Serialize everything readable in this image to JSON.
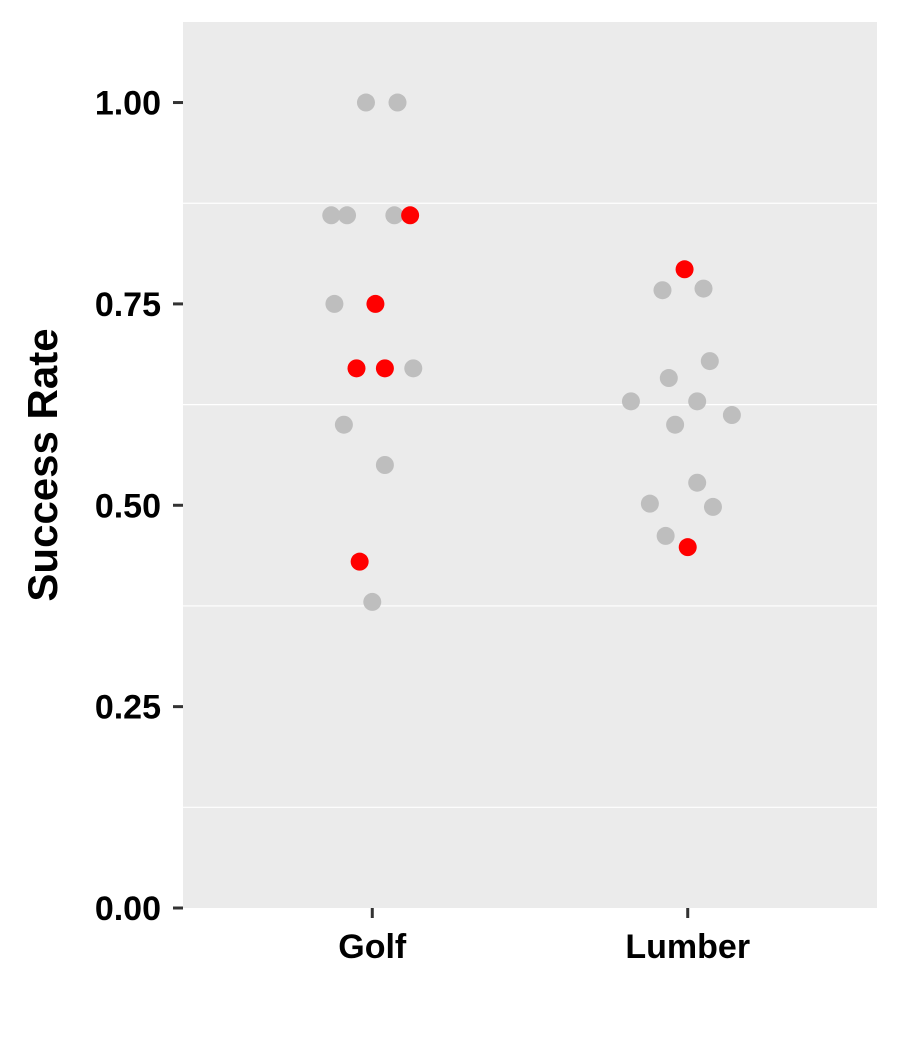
{
  "chart_data": {
    "type": "scatter",
    "title": "",
    "xlabel": "",
    "ylabel": "Success Rate",
    "ylim": [
      0,
      1.1
    ],
    "categories": [
      "Golf",
      "Lumber"
    ],
    "y_ticks": [
      0.0,
      0.25,
      0.5,
      0.75,
      1.0
    ],
    "y_tick_labels": [
      "0.00",
      "0.25",
      "0.50",
      "0.75",
      "1.00"
    ],
    "grid": true,
    "legend": "none",
    "colors": {
      "panel": "#ebebeb",
      "grid": "#ffffff",
      "default_point": "#bebebe",
      "highlight_point": "#ff0000",
      "tick": "#333333"
    },
    "series": [
      {
        "category": "Golf",
        "points": [
          {
            "jitter": -0.02,
            "y": 1.0,
            "highlight": false
          },
          {
            "jitter": 0.08,
            "y": 1.0,
            "highlight": false
          },
          {
            "jitter": -0.13,
            "y": 0.86,
            "highlight": false
          },
          {
            "jitter": -0.08,
            "y": 0.86,
            "highlight": false
          },
          {
            "jitter": 0.07,
            "y": 0.86,
            "highlight": false
          },
          {
            "jitter": 0.12,
            "y": 0.86,
            "highlight": true
          },
          {
            "jitter": -0.12,
            "y": 0.75,
            "highlight": false
          },
          {
            "jitter": 0.01,
            "y": 0.75,
            "highlight": true
          },
          {
            "jitter": -0.05,
            "y": 0.67,
            "highlight": true
          },
          {
            "jitter": 0.04,
            "y": 0.67,
            "highlight": true
          },
          {
            "jitter": 0.13,
            "y": 0.67,
            "highlight": false
          },
          {
            "jitter": -0.09,
            "y": 0.6,
            "highlight": false
          },
          {
            "jitter": 0.04,
            "y": 0.55,
            "highlight": false
          },
          {
            "jitter": -0.04,
            "y": 0.43,
            "highlight": true
          },
          {
            "jitter": 0.0,
            "y": 0.38,
            "highlight": false
          }
        ]
      },
      {
        "category": "Lumber",
        "points": [
          {
            "jitter": -0.01,
            "y": 0.793,
            "highlight": true
          },
          {
            "jitter": -0.08,
            "y": 0.767,
            "highlight": false
          },
          {
            "jitter": 0.05,
            "y": 0.769,
            "highlight": false
          },
          {
            "jitter": 0.07,
            "y": 0.679,
            "highlight": false
          },
          {
            "jitter": -0.06,
            "y": 0.658,
            "highlight": false
          },
          {
            "jitter": -0.18,
            "y": 0.629,
            "highlight": false
          },
          {
            "jitter": 0.03,
            "y": 0.629,
            "highlight": false
          },
          {
            "jitter": 0.14,
            "y": 0.612,
            "highlight": false
          },
          {
            "jitter": -0.04,
            "y": 0.6,
            "highlight": false
          },
          {
            "jitter": 0.03,
            "y": 0.528,
            "highlight": false
          },
          {
            "jitter": -0.12,
            "y": 0.502,
            "highlight": false
          },
          {
            "jitter": 0.08,
            "y": 0.498,
            "highlight": false
          },
          {
            "jitter": -0.07,
            "y": 0.462,
            "highlight": false
          },
          {
            "jitter": 0.0,
            "y": 0.448,
            "highlight": true
          }
        ]
      }
    ]
  }
}
